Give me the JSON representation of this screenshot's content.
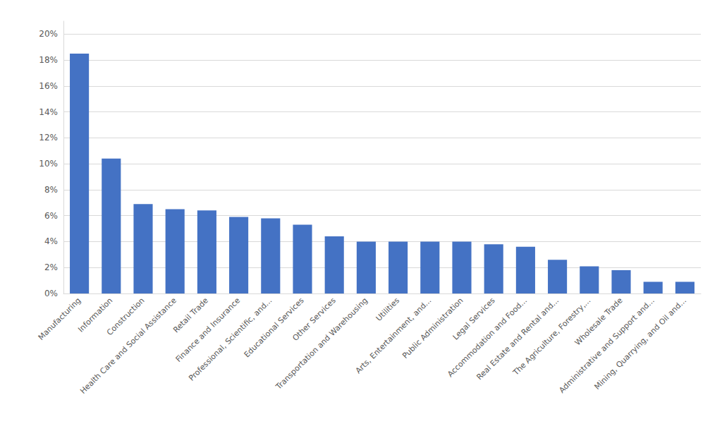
{
  "chart_data": {
    "type": "bar",
    "categories": [
      "Manufacturing",
      "Information",
      "Construction",
      "Health Care and Social Assistance",
      "Retail Trade",
      "Finance and Insurance",
      "Professional, Scientific, and...",
      "Educational Services",
      "Other Services",
      "Transportation and Warehousing",
      "Utilities",
      "Arts, Entertainment, and...",
      "Public Administration",
      "Legal Services",
      "Accommodation and Food...",
      "Real Estate and Rental and...",
      "The Agriculture, Forestry,...",
      "Wholesale Trade",
      "Administrative and Support and...",
      "Mining, Quarrying, and Oil and..."
    ],
    "values": [
      0.185,
      0.104,
      0.069,
      0.065,
      0.064,
      0.059,
      0.058,
      0.053,
      0.044,
      0.04,
      0.04,
      0.04,
      0.04,
      0.038,
      0.036,
      0.026,
      0.021,
      0.018,
      0.009,
      0.009
    ],
    "color": "#4472C4",
    "ylim": [
      0,
      0.21
    ],
    "yticks": [
      {
        "value": 0,
        "label": "0%"
      },
      {
        "value": 0.02,
        "label": "2%"
      },
      {
        "value": 0.04,
        "label": "4%"
      },
      {
        "value": 0.06,
        "label": "6%"
      },
      {
        "value": 0.08,
        "label": "8%"
      },
      {
        "value": 0.1,
        "label": "10%"
      },
      {
        "value": 0.12,
        "label": "12%"
      },
      {
        "value": 0.14,
        "label": "14%"
      },
      {
        "value": 0.16,
        "label": "16%"
      },
      {
        "value": 0.18,
        "label": "18%"
      },
      {
        "value": 0.2,
        "label": "20%"
      }
    ],
    "grid": true
  }
}
